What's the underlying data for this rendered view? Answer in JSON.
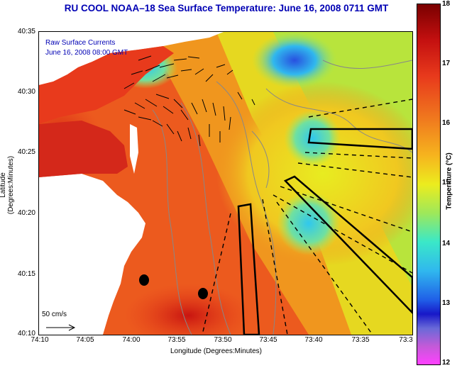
{
  "title": "RU COOL   NOAA–18  Sea Surface Temperature:  June 16, 2008 0711 GMT",
  "legend": {
    "line1": "Raw Surface Currents",
    "line2": "June 16, 2008 08:00 GMT"
  },
  "axes": {
    "ylabel": "Latitude (Degrees:Minutes)",
    "xlabel": "Longitude (Degrees:Minutes)",
    "yticks": [
      "40:35",
      "40:30",
      "40:25",
      "40:20",
      "40:15",
      "40:10"
    ],
    "xticks": [
      "74:10",
      "74:05",
      "74:00",
      "73:55",
      "73:50",
      "73:45",
      "73:40",
      "73:35",
      "73:3"
    ]
  },
  "scale": {
    "label": "50 cm/s"
  },
  "colorbar": {
    "title": "Temperature (°C)",
    "ticks": [
      "18",
      "17",
      "16",
      "15",
      "14",
      "13",
      "12"
    ],
    "colors": [
      "#7a0000",
      "#e83a1c",
      "#f07a1e",
      "#ecec1e",
      "#3ae8c8",
      "#2060e8",
      "#ff40ff"
    ]
  }
}
